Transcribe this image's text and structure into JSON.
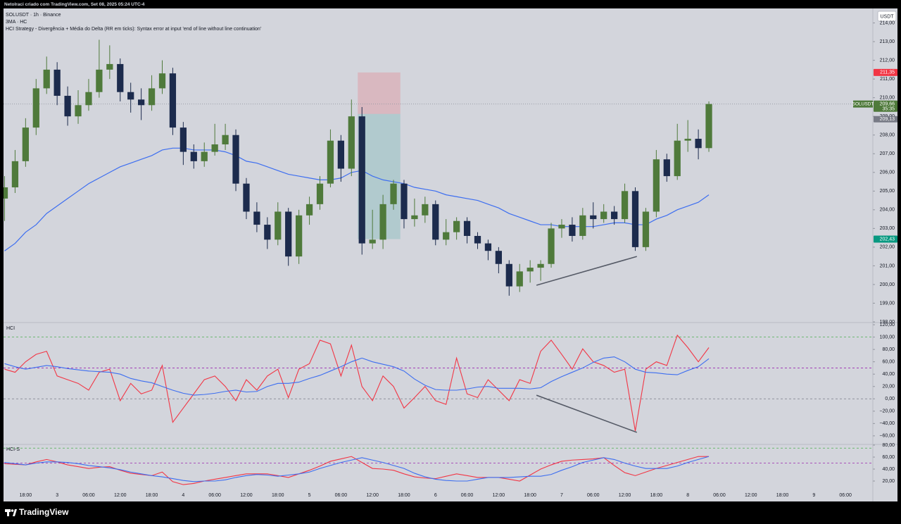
{
  "page": {
    "caption": "Netolraci criado com TradingView.com, Set 08, 2025 05:24 UTC-4",
    "brand": "TradingView",
    "currency": "USDT"
  },
  "chart_data": [
    {
      "type": "candlestick",
      "title": "SOLUSDT · 1h · Binance",
      "subtitle": "3MA · HC",
      "annotation": "HCI Strategy - Divergência + Média do Delta (RR em ticks): Syntax error at input 'end of line without line continuation'",
      "up_color": "#4f7a3b",
      "down_color": "#1c2b4d",
      "x": [
        -10,
        -8,
        -6,
        -4,
        -2,
        0,
        2,
        4,
        6,
        8,
        10,
        12,
        14,
        16,
        18,
        20,
        22,
        24,
        26,
        28,
        30,
        32,
        34,
        36,
        38,
        40,
        42,
        44,
        46,
        48,
        50,
        52,
        54,
        56,
        58,
        60,
        62,
        64,
        66,
        68,
        70,
        72,
        74,
        76,
        78,
        80,
        82,
        84,
        86,
        88,
        90,
        92,
        94,
        96,
        98,
        100,
        102,
        104,
        106,
        108,
        110,
        112,
        114,
        116,
        118,
        120,
        122,
        124
      ],
      "open": [
        204.6,
        205.2,
        206.6,
        208.4,
        210.5,
        211.5,
        210.1,
        209.0,
        209.6,
        210.3,
        211.5,
        211.8,
        210.3,
        209.9,
        209.6,
        210.5,
        211.3,
        208.4,
        207.1,
        206.6,
        207.1,
        207.5,
        208.0,
        205.4,
        203.9,
        203.2,
        202.4,
        203.9,
        201.5,
        203.7,
        204.3,
        205.4,
        207.7,
        206.2,
        209.0,
        202.2,
        202.4,
        204.3,
        205.4,
        203.5,
        203.7,
        204.3,
        202.4,
        202.8,
        203.4,
        202.6,
        202.2,
        201.8,
        201.1,
        199.9,
        200.7,
        200.9,
        201.1,
        203.0,
        203.2,
        202.6,
        203.7,
        203.5,
        203.9,
        203.5,
        205.0,
        202.0,
        203.9,
        206.7,
        205.8,
        207.7,
        207.8,
        207.3
      ],
      "high": [
        205.8,
        207.2,
        208.9,
        211.0,
        212.2,
        211.9,
        210.6,
        210.4,
        211.0,
        213.1,
        212.8,
        212.1,
        210.8,
        210.5,
        211.2,
        212.0,
        211.6,
        208.7,
        207.5,
        207.6,
        208.6,
        208.6,
        208.3,
        205.7,
        204.4,
        203.6,
        204.4,
        204.1,
        204.0,
        204.7,
        205.8,
        208.3,
        208.0,
        209.9,
        209.5,
        204.0,
        204.8,
        205.6,
        205.6,
        204.6,
        204.7,
        204.5,
        203.5,
        203.6,
        203.6,
        202.8,
        202.4,
        202.0,
        201.3,
        201.1,
        201.3,
        201.3,
        203.3,
        203.5,
        203.6,
        204.1,
        204.4,
        204.3,
        204.2,
        205.4,
        205.2,
        204.1,
        207.2,
        207.0,
        208.6,
        208.8,
        208.3,
        209.8
      ],
      "low": [
        203.4,
        204.9,
        206.3,
        208.0,
        210.2,
        209.6,
        208.5,
        208.6,
        209.3,
        210.0,
        211.0,
        209.8,
        209.2,
        208.8,
        209.3,
        210.2,
        208.0,
        206.4,
        206.2,
        206.3,
        206.9,
        207.2,
        205.0,
        203.5,
        202.8,
        201.9,
        202.1,
        201.0,
        201.1,
        203.2,
        204.0,
        205.2,
        205.5,
        205.8,
        201.6,
        201.9,
        201.9,
        204.0,
        203.0,
        203.1,
        203.3,
        202.1,
        202.1,
        202.4,
        202.2,
        201.9,
        201.3,
        200.6,
        199.4,
        199.6,
        200.1,
        200.2,
        200.9,
        202.5,
        202.3,
        202.4,
        203.0,
        203.3,
        203.2,
        203.3,
        201.8,
        201.8,
        203.6,
        205.5,
        205.6,
        207.1,
        206.7,
        207.1
      ],
      "close": [
        205.2,
        206.6,
        208.4,
        210.5,
        211.5,
        210.1,
        209.0,
        209.6,
        210.3,
        211.5,
        211.8,
        210.3,
        209.9,
        209.6,
        210.5,
        211.3,
        208.4,
        207.1,
        206.6,
        207.1,
        207.5,
        208.0,
        205.4,
        203.9,
        203.2,
        202.4,
        203.9,
        201.5,
        203.7,
        204.3,
        205.4,
        207.7,
        206.2,
        209.0,
        202.2,
        202.4,
        204.3,
        205.4,
        203.5,
        203.7,
        204.3,
        202.4,
        202.8,
        203.4,
        202.6,
        202.2,
        201.8,
        201.1,
        199.9,
        200.7,
        200.9,
        201.1,
        203.0,
        203.2,
        202.6,
        203.7,
        203.5,
        203.9,
        203.5,
        205.0,
        202.0,
        203.9,
        206.7,
        205.8,
        207.7,
        207.8,
        207.3,
        209.66
      ],
      "ma": {
        "color": "#3d6ef0",
        "values": [
          201.8,
          202.2,
          202.8,
          203.2,
          203.8,
          204.2,
          204.6,
          205.0,
          205.4,
          205.7,
          206.0,
          206.3,
          206.5,
          206.7,
          206.9,
          207.2,
          207.3,
          207.3,
          207.2,
          207.2,
          207.2,
          207.1,
          206.9,
          206.6,
          206.5,
          206.3,
          206.1,
          205.9,
          205.8,
          205.7,
          205.6,
          205.6,
          205.7,
          206.0,
          206.1,
          205.8,
          205.6,
          205.5,
          205.4,
          205.2,
          205.1,
          205.0,
          204.8,
          204.7,
          204.6,
          204.5,
          204.3,
          204.1,
          203.8,
          203.6,
          203.4,
          203.2,
          203.2,
          203.1,
          203.1,
          203.1,
          203.1,
          203.2,
          203.3,
          203.3,
          203.2,
          203.2,
          203.5,
          203.7,
          204.0,
          204.2,
          204.4,
          204.8
        ]
      },
      "xlim": [
        -10.2,
        155.2
      ],
      "xticks": [
        {
          "value": -6,
          "label": "18:00"
        },
        {
          "value": 0,
          "label": "3"
        },
        {
          "value": 6,
          "label": "06:00"
        },
        {
          "value": 12,
          "label": "12:00"
        },
        {
          "value": 18,
          "label": "18:00"
        },
        {
          "value": 24,
          "label": "4"
        },
        {
          "value": 30,
          "label": "06:00"
        },
        {
          "value": 36,
          "label": "12:00"
        },
        {
          "value": 42,
          "label": "18:00"
        },
        {
          "value": 48,
          "label": "5"
        },
        {
          "value": 54,
          "label": "06:00"
        },
        {
          "value": 60,
          "label": "12:00"
        },
        {
          "value": 66,
          "label": "18:00"
        },
        {
          "value": 72,
          "label": "6"
        },
        {
          "value": 78,
          "label": "06:00"
        },
        {
          "value": 84,
          "label": "12:00"
        },
        {
          "value": 90,
          "label": "18:00"
        },
        {
          "value": 96,
          "label": "7"
        },
        {
          "value": 102,
          "label": "06:00"
        },
        {
          "value": 108,
          "label": "12:00"
        },
        {
          "value": 114,
          "label": "18:00"
        },
        {
          "value": 120,
          "label": "8"
        },
        {
          "value": 126,
          "label": "06:00"
        },
        {
          "value": 132,
          "label": "12:00"
        },
        {
          "value": 138,
          "label": "18:00"
        },
        {
          "value": 144,
          "label": "9"
        },
        {
          "value": 150,
          "label": "06:00"
        }
      ],
      "ylim": [
        198,
        214.7
      ],
      "yticks": [
        {
          "value": 198,
          "label": "198,00"
        },
        {
          "value": 199,
          "label": "199,00"
        },
        {
          "value": 200,
          "label": "200,00"
        },
        {
          "value": 201,
          "label": "201,00"
        },
        {
          "value": 202,
          "label": "202,00"
        },
        {
          "value": 203,
          "label": "203,00"
        },
        {
          "value": 204,
          "label": "204,00"
        },
        {
          "value": 205,
          "label": "205,00"
        },
        {
          "value": 206,
          "label": "206,00"
        },
        {
          "value": 207,
          "label": "207,00"
        },
        {
          "value": 208,
          "label": "208,00"
        },
        {
          "value": 209,
          "label": "209,00"
        },
        {
          "value": 210,
          "label": "210,00"
        },
        {
          "value": 211,
          "label": "211,00"
        },
        {
          "value": 212,
          "label": "212,00"
        },
        {
          "value": 213,
          "label": "213,00"
        },
        {
          "value": 214,
          "label": "214,00"
        }
      ],
      "last_price": {
        "value": 209.66,
        "label": "209,66",
        "color": "#4f7a3b"
      },
      "symbol_tag": "SOLUSDT",
      "countdown": "35:35",
      "position": {
        "x": [
          57.2,
          65.3
        ],
        "stop_color": "rgba(242,54,69,0.18)",
        "target_color": "rgba(0,150,136,0.16)",
        "stop": {
          "value": 211.35,
          "label": "211,35",
          "color": "#f23645"
        },
        "entry": {
          "value": 209.13,
          "label": "209,13",
          "color": "#787b86"
        },
        "target": {
          "value": 202.43,
          "label": "202,43",
          "color": "#089981"
        }
      },
      "lines": [
        {
          "color": "#555a66",
          "x": [
            91.2,
            110.3
          ],
          "values": [
            199.96,
            201.5
          ]
        }
      ]
    },
    {
      "type": "line",
      "title": "HCI",
      "series": [
        {
          "color": "#f23645",
          "values": [
            48,
            43,
            60,
            72,
            77,
            37,
            31,
            25,
            14,
            43,
            48,
            -3,
            25,
            8,
            14,
            54,
            -38,
            -15,
            8,
            31,
            37,
            20,
            -3,
            31,
            14,
            37,
            48,
            2,
            48,
            57,
            95,
            89,
            37,
            87,
            20,
            -3,
            37,
            20,
            -15,
            2,
            20,
            -3,
            -9,
            66,
            8,
            2,
            31,
            14,
            -3,
            31,
            25,
            77,
            95,
            72,
            48,
            81,
            60,
            54,
            43,
            48,
            -52,
            48,
            60,
            54,
            103,
            83,
            60,
            83
          ]
        },
        {
          "color": "#3d6ef0",
          "values": [
            57,
            52,
            48,
            51,
            54,
            52,
            49,
            47,
            45,
            44,
            43,
            40,
            33,
            29,
            26,
            20,
            14,
            9,
            6,
            7,
            9,
            12,
            14,
            11,
            12,
            20,
            25,
            25,
            27,
            33,
            38,
            45,
            52,
            60,
            66,
            60,
            56,
            52,
            45,
            32,
            22,
            15,
            14,
            14,
            16,
            19,
            20,
            17,
            17,
            17,
            16,
            18,
            28,
            36,
            43,
            50,
            59,
            66,
            68,
            60,
            48,
            43,
            42,
            40,
            39,
            46,
            52,
            65
          ]
        }
      ],
      "ylim": [
        -72.7,
        123.5
      ],
      "yticks": [
        {
          "value": 120,
          "label": "120,00"
        },
        {
          "value": 100,
          "label": "100,00"
        },
        {
          "value": 80,
          "label": "80,00"
        },
        {
          "value": 60,
          "label": "60,00"
        },
        {
          "value": 40,
          "label": "40,00"
        },
        {
          "value": 20,
          "label": "20,00"
        },
        {
          "value": 0,
          "label": "0,00"
        },
        {
          "value": -20,
          "label": "−20,00"
        },
        {
          "value": -40,
          "label": "−40,00"
        },
        {
          "value": -60,
          "label": "−60,00"
        }
      ],
      "levels": [
        {
          "value": 100,
          "color": "#4caf50"
        },
        {
          "value": 50,
          "color": "#9c27b0"
        },
        {
          "value": 0,
          "color": "#787b86"
        }
      ],
      "lines": [
        {
          "color": "#555a66",
          "x": [
            91.2,
            110.3
          ],
          "values": [
            5.8,
            -54.3
          ]
        }
      ]
    },
    {
      "type": "line",
      "title": "HCI-S",
      "series": [
        {
          "color": "#f23645",
          "values": [
            49,
            48,
            47,
            52,
            56,
            52,
            47,
            44,
            41,
            43,
            44,
            38,
            33,
            31,
            29,
            35,
            19,
            14,
            16,
            20,
            23,
            26,
            29,
            32,
            32,
            32,
            29,
            26,
            32,
            38,
            45,
            53,
            57,
            61,
            51,
            41,
            40,
            38,
            32,
            27,
            25,
            24,
            28,
            32,
            29,
            26,
            26,
            26,
            23,
            20,
            30,
            40,
            47,
            53,
            55,
            56,
            57,
            59,
            46,
            34,
            29,
            35,
            41,
            46,
            51,
            56,
            61,
            61
          ]
        },
        {
          "color": "#3d6ef0",
          "values": [
            51,
            49,
            47,
            50,
            52,
            52,
            51,
            49,
            46,
            44,
            42,
            39,
            35,
            32,
            29,
            27,
            24,
            21,
            19,
            20,
            20,
            22,
            26,
            29,
            31,
            30,
            28,
            30,
            32,
            35,
            41,
            46,
            51,
            55,
            59,
            55,
            51,
            46,
            41,
            33,
            27,
            23,
            21,
            20,
            20,
            23,
            26,
            26,
            26,
            27,
            28,
            28,
            31,
            38,
            44,
            51,
            55,
            59,
            56,
            50,
            45,
            41,
            41,
            41,
            45,
            51,
            56,
            61
          ]
        }
      ],
      "ylim": [
        4.7,
        80
      ],
      "yticks": [
        {
          "value": 80,
          "label": "80,00"
        },
        {
          "value": 60,
          "label": "60,00"
        },
        {
          "value": 40,
          "label": "40,00"
        },
        {
          "value": 20,
          "label": "20,00"
        }
      ],
      "levels": [
        {
          "value": 75,
          "color": "#4caf50"
        },
        {
          "value": 50,
          "color": "#9c27b0"
        }
      ]
    }
  ]
}
